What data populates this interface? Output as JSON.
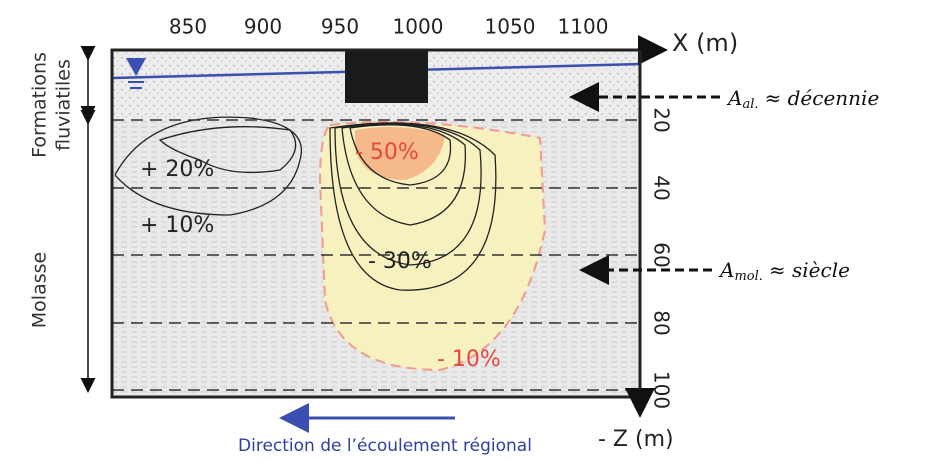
{
  "x_axis": {
    "label": "X (m)",
    "ticks": [
      "850",
      "900",
      "950",
      "1000",
      "1050",
      "1100"
    ]
  },
  "z_axis": {
    "label": "- Z (m)",
    "ticks": [
      "20",
      "40",
      "60",
      "80",
      "100"
    ]
  },
  "layers": [
    {
      "label": [
        "Formations",
        "fluviatiles"
      ]
    },
    {
      "label": [
        "Molasse"
      ]
    }
  ],
  "contours": [
    "+ 20%",
    "+ 10%",
    "- 50%",
    "- 30%",
    "- 10%"
  ],
  "annotations": [
    {
      "symbol": "A",
      "subscript": "al.",
      "text": "≈ décennie"
    },
    {
      "symbol": "A",
      "subscript": "mol.",
      "text": "≈ siècle"
    }
  ],
  "flow": "Direction de l’écoulement régional"
}
